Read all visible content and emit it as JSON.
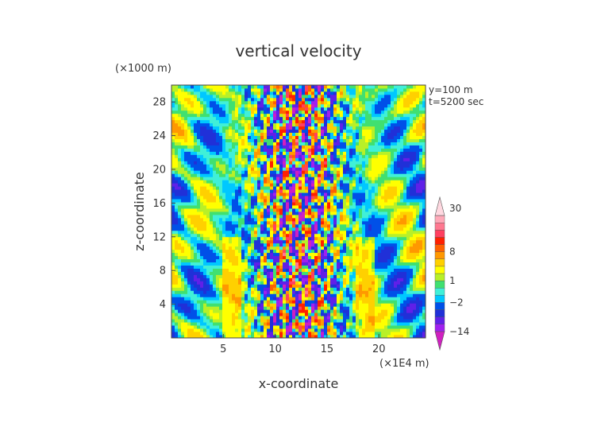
{
  "chart_data": {
    "type": "heatmap",
    "title": "vertical velocity",
    "xlabel": "x-coordinate",
    "ylabel": "z-coordinate",
    "x_unit": "(×1E4 m)",
    "y_unit": "(×1000 m)",
    "annotations": [
      "y=100  m",
      "t=5200 sec"
    ],
    "xlim": [
      0,
      24.5
    ],
    "ylim": [
      0,
      30
    ],
    "x_ticks": [
      5,
      10,
      15,
      20
    ],
    "y_ticks": [
      4,
      8,
      12,
      16,
      20,
      24,
      28
    ],
    "colorbar": {
      "labels": [
        {
          "text": "30",
          "value": 30
        },
        {
          "text": "8",
          "value": 8
        },
        {
          "text": "1",
          "value": 1
        },
        {
          "text": "−2",
          "value": -2
        },
        {
          "text": "−14",
          "value": -14
        }
      ],
      "levels": [
        -20,
        -14,
        -10,
        -6,
        -4,
        -2,
        -1,
        0,
        1,
        2,
        4,
        6,
        8,
        10,
        14,
        18,
        22,
        26,
        30
      ],
      "colors": [
        "#d020c0",
        "#a020f0",
        "#6020e8",
        "#2030d8",
        "#0050e8",
        "#00c8ff",
        "#40f0d8",
        "#40e070",
        "#b8f028",
        "#ffff00",
        "#ffd000",
        "#ff9800",
        "#ff6000",
        "#ff2000",
        "#ff4060",
        "#ff7890",
        "#ffa8b8",
        "#ffd8e0"
      ]
    }
  }
}
